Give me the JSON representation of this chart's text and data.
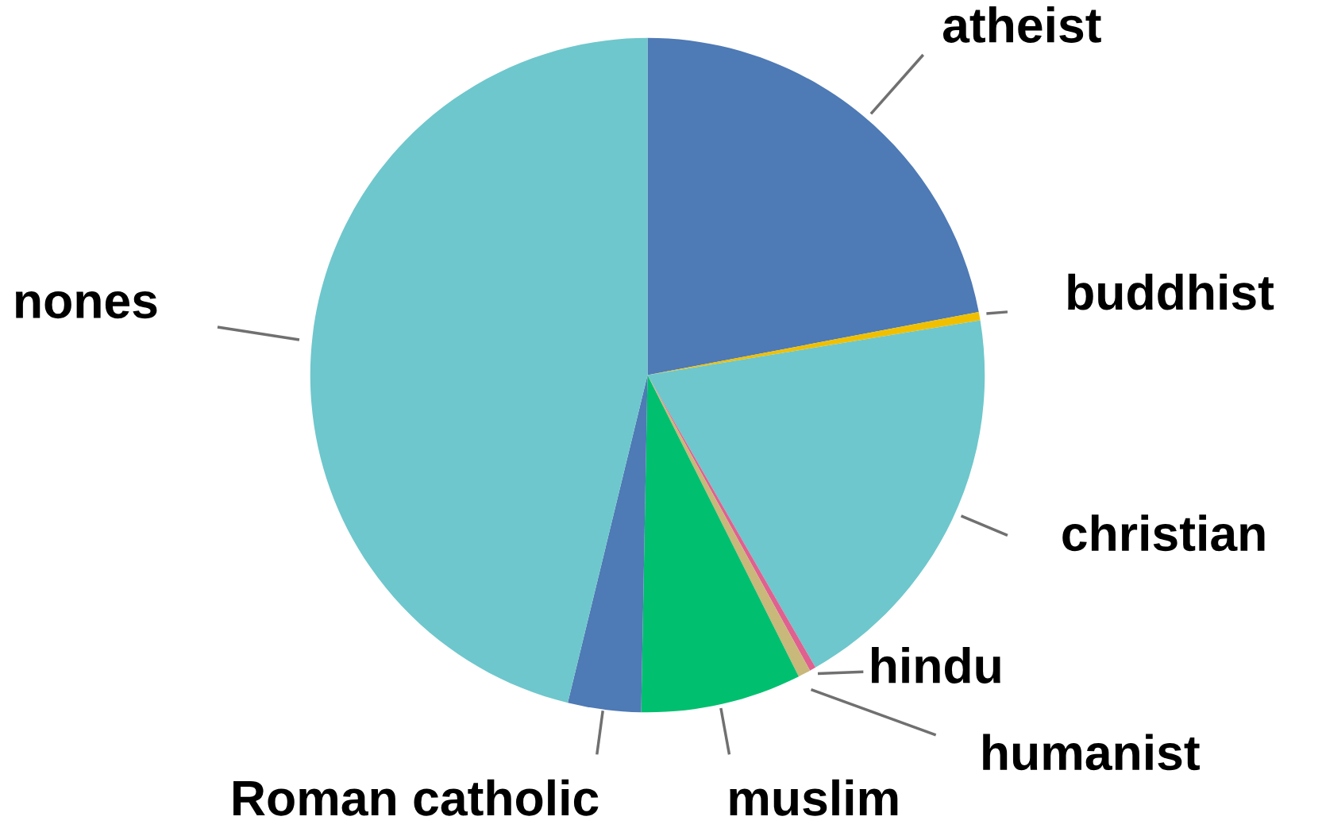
{
  "chart_data": {
    "type": "pie",
    "categories": [
      "atheist",
      "buddhist",
      "christian",
      "hindu",
      "humanist",
      "muslim",
      "Roman catholic",
      "nones"
    ],
    "values": [
      22.0,
      0.4,
      19.3,
      0.3,
      0.6,
      7.7,
      3.5,
      46.2
    ],
    "colors": [
      "#4e7ab5",
      "#f0c000",
      "#6ec7cc",
      "#e06090",
      "#c8b87a",
      "#00bf6f",
      "#4e7ab5",
      "#6ec7cc"
    ],
    "legend": false
  }
}
